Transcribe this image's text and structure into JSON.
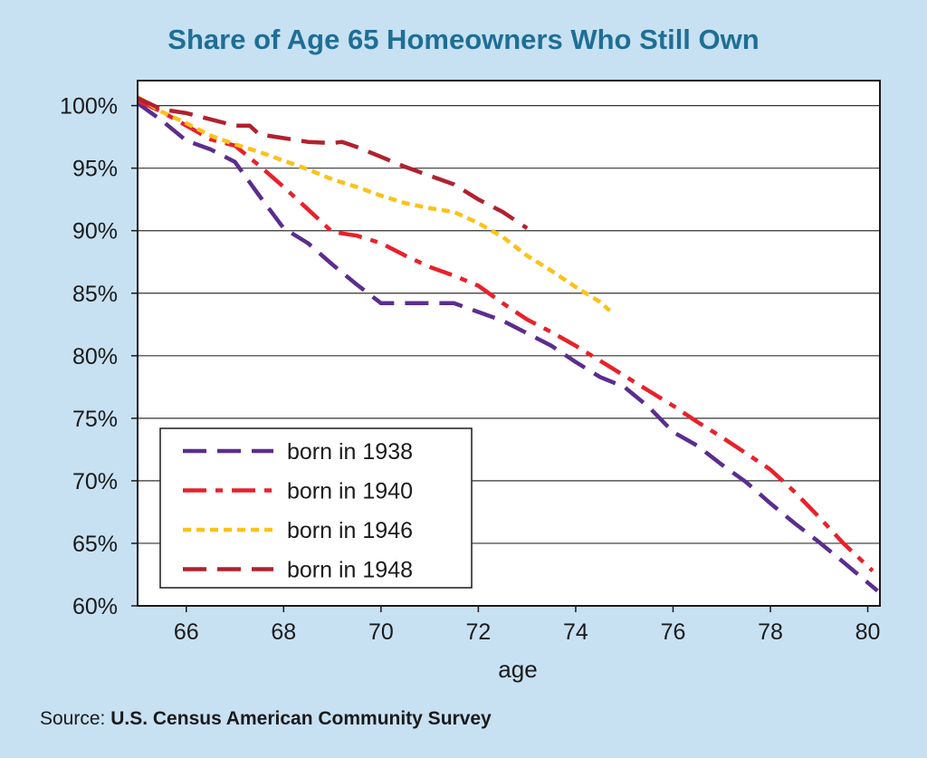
{
  "chart_data": {
    "type": "line",
    "title": "Share of Age 65 Homeowners Who Still Own",
    "xlabel": "age",
    "ylabel": "",
    "xlim": [
      65,
      80.25
    ],
    "ylim": [
      60,
      102
    ],
    "xticks": [
      66,
      68,
      70,
      72,
      74,
      76,
      78,
      80
    ],
    "xtick_labels": [
      "66",
      "68",
      "70",
      "72",
      "74",
      "76",
      "78",
      "80"
    ],
    "yticks": [
      60,
      65,
      70,
      75,
      80,
      85,
      90,
      95,
      100
    ],
    "ytick_labels": [
      "60%",
      "65%",
      "70%",
      "75%",
      "80%",
      "85%",
      "90%",
      "95%",
      "100%"
    ],
    "grid": "horizontal",
    "legend_position": "bottom-left",
    "series": [
      {
        "name": "born in 1938",
        "color": "#5b2d8e",
        "dash": "dashed",
        "x": [
          65,
          65.5,
          66,
          66.5,
          67,
          67.5,
          68,
          68.5,
          69,
          69.5,
          70,
          70.5,
          71,
          71.5,
          72,
          72.5,
          73,
          73.5,
          74,
          74.5,
          75,
          75.5,
          76,
          76.5,
          77,
          77.5,
          78,
          78.5,
          79,
          79.5,
          80.2
        ],
        "values": [
          100.2,
          98.8,
          97.2,
          96.5,
          95.5,
          92.8,
          90.2,
          89.0,
          87.3,
          85.7,
          84.2,
          84.2,
          84.2,
          84.2,
          83.5,
          82.8,
          81.8,
          80.8,
          79.5,
          78.3,
          77.5,
          75.9,
          73.9,
          72.8,
          71.3,
          69.9,
          68.2,
          66.6,
          65.1,
          63.5,
          61.2
        ]
      },
      {
        "name": "born in 1940",
        "color": "#e8212b",
        "dash": "dash-dot",
        "x": [
          65,
          65.5,
          66,
          66.5,
          67,
          67.5,
          68,
          68.5,
          69,
          69.5,
          70,
          70.5,
          71,
          71.5,
          72,
          72.5,
          73,
          73.5,
          74,
          74.5,
          75,
          75.5,
          76,
          76.5,
          77,
          77.5,
          78,
          78.5,
          79,
          79.5,
          80.1
        ],
        "values": [
          100.4,
          99.5,
          98.4,
          97.3,
          96.8,
          95.2,
          93.5,
          91.7,
          89.9,
          89.6,
          89.0,
          88.0,
          87.1,
          86.4,
          85.6,
          84.2,
          82.9,
          81.9,
          80.8,
          79.6,
          78.4,
          77.2,
          76.0,
          74.7,
          73.5,
          72.2,
          70.9,
          69.1,
          67.1,
          65.0,
          62.8
        ]
      },
      {
        "name": "born in 1946",
        "color": "#fbc21a",
        "dash": "dotted",
        "x": [
          65,
          65.5,
          66,
          66.5,
          67,
          67.5,
          68,
          68.5,
          69,
          69.5,
          70,
          70.5,
          71,
          71.5,
          72,
          72.5,
          73,
          73.5,
          74,
          74.5,
          74.7
        ],
        "values": [
          100.7,
          99.5,
          98.6,
          97.6,
          96.9,
          96.3,
          95.6,
          94.9,
          94.1,
          93.5,
          92.8,
          92.2,
          91.8,
          91.5,
          90.6,
          89.5,
          88.0,
          86.8,
          85.5,
          84.3,
          83.6
        ]
      },
      {
        "name": "born in 1948",
        "color": "#b1212e",
        "dash": "dashed",
        "x": [
          65,
          65.5,
          66,
          66.5,
          67,
          67.3,
          67.5,
          68,
          68.5,
          69,
          69.2,
          69.5,
          70,
          70.5,
          71,
          71.5,
          72,
          72.5,
          73
        ],
        "values": [
          100.6,
          99.7,
          99.4,
          98.9,
          98.4,
          98.4,
          97.7,
          97.4,
          97.1,
          97.0,
          97.1,
          96.7,
          95.9,
          95.1,
          94.4,
          93.7,
          92.5,
          91.5,
          90.2
        ]
      }
    ]
  },
  "source": {
    "label": "Source:",
    "value": "U.S. Census American Community Survey"
  }
}
